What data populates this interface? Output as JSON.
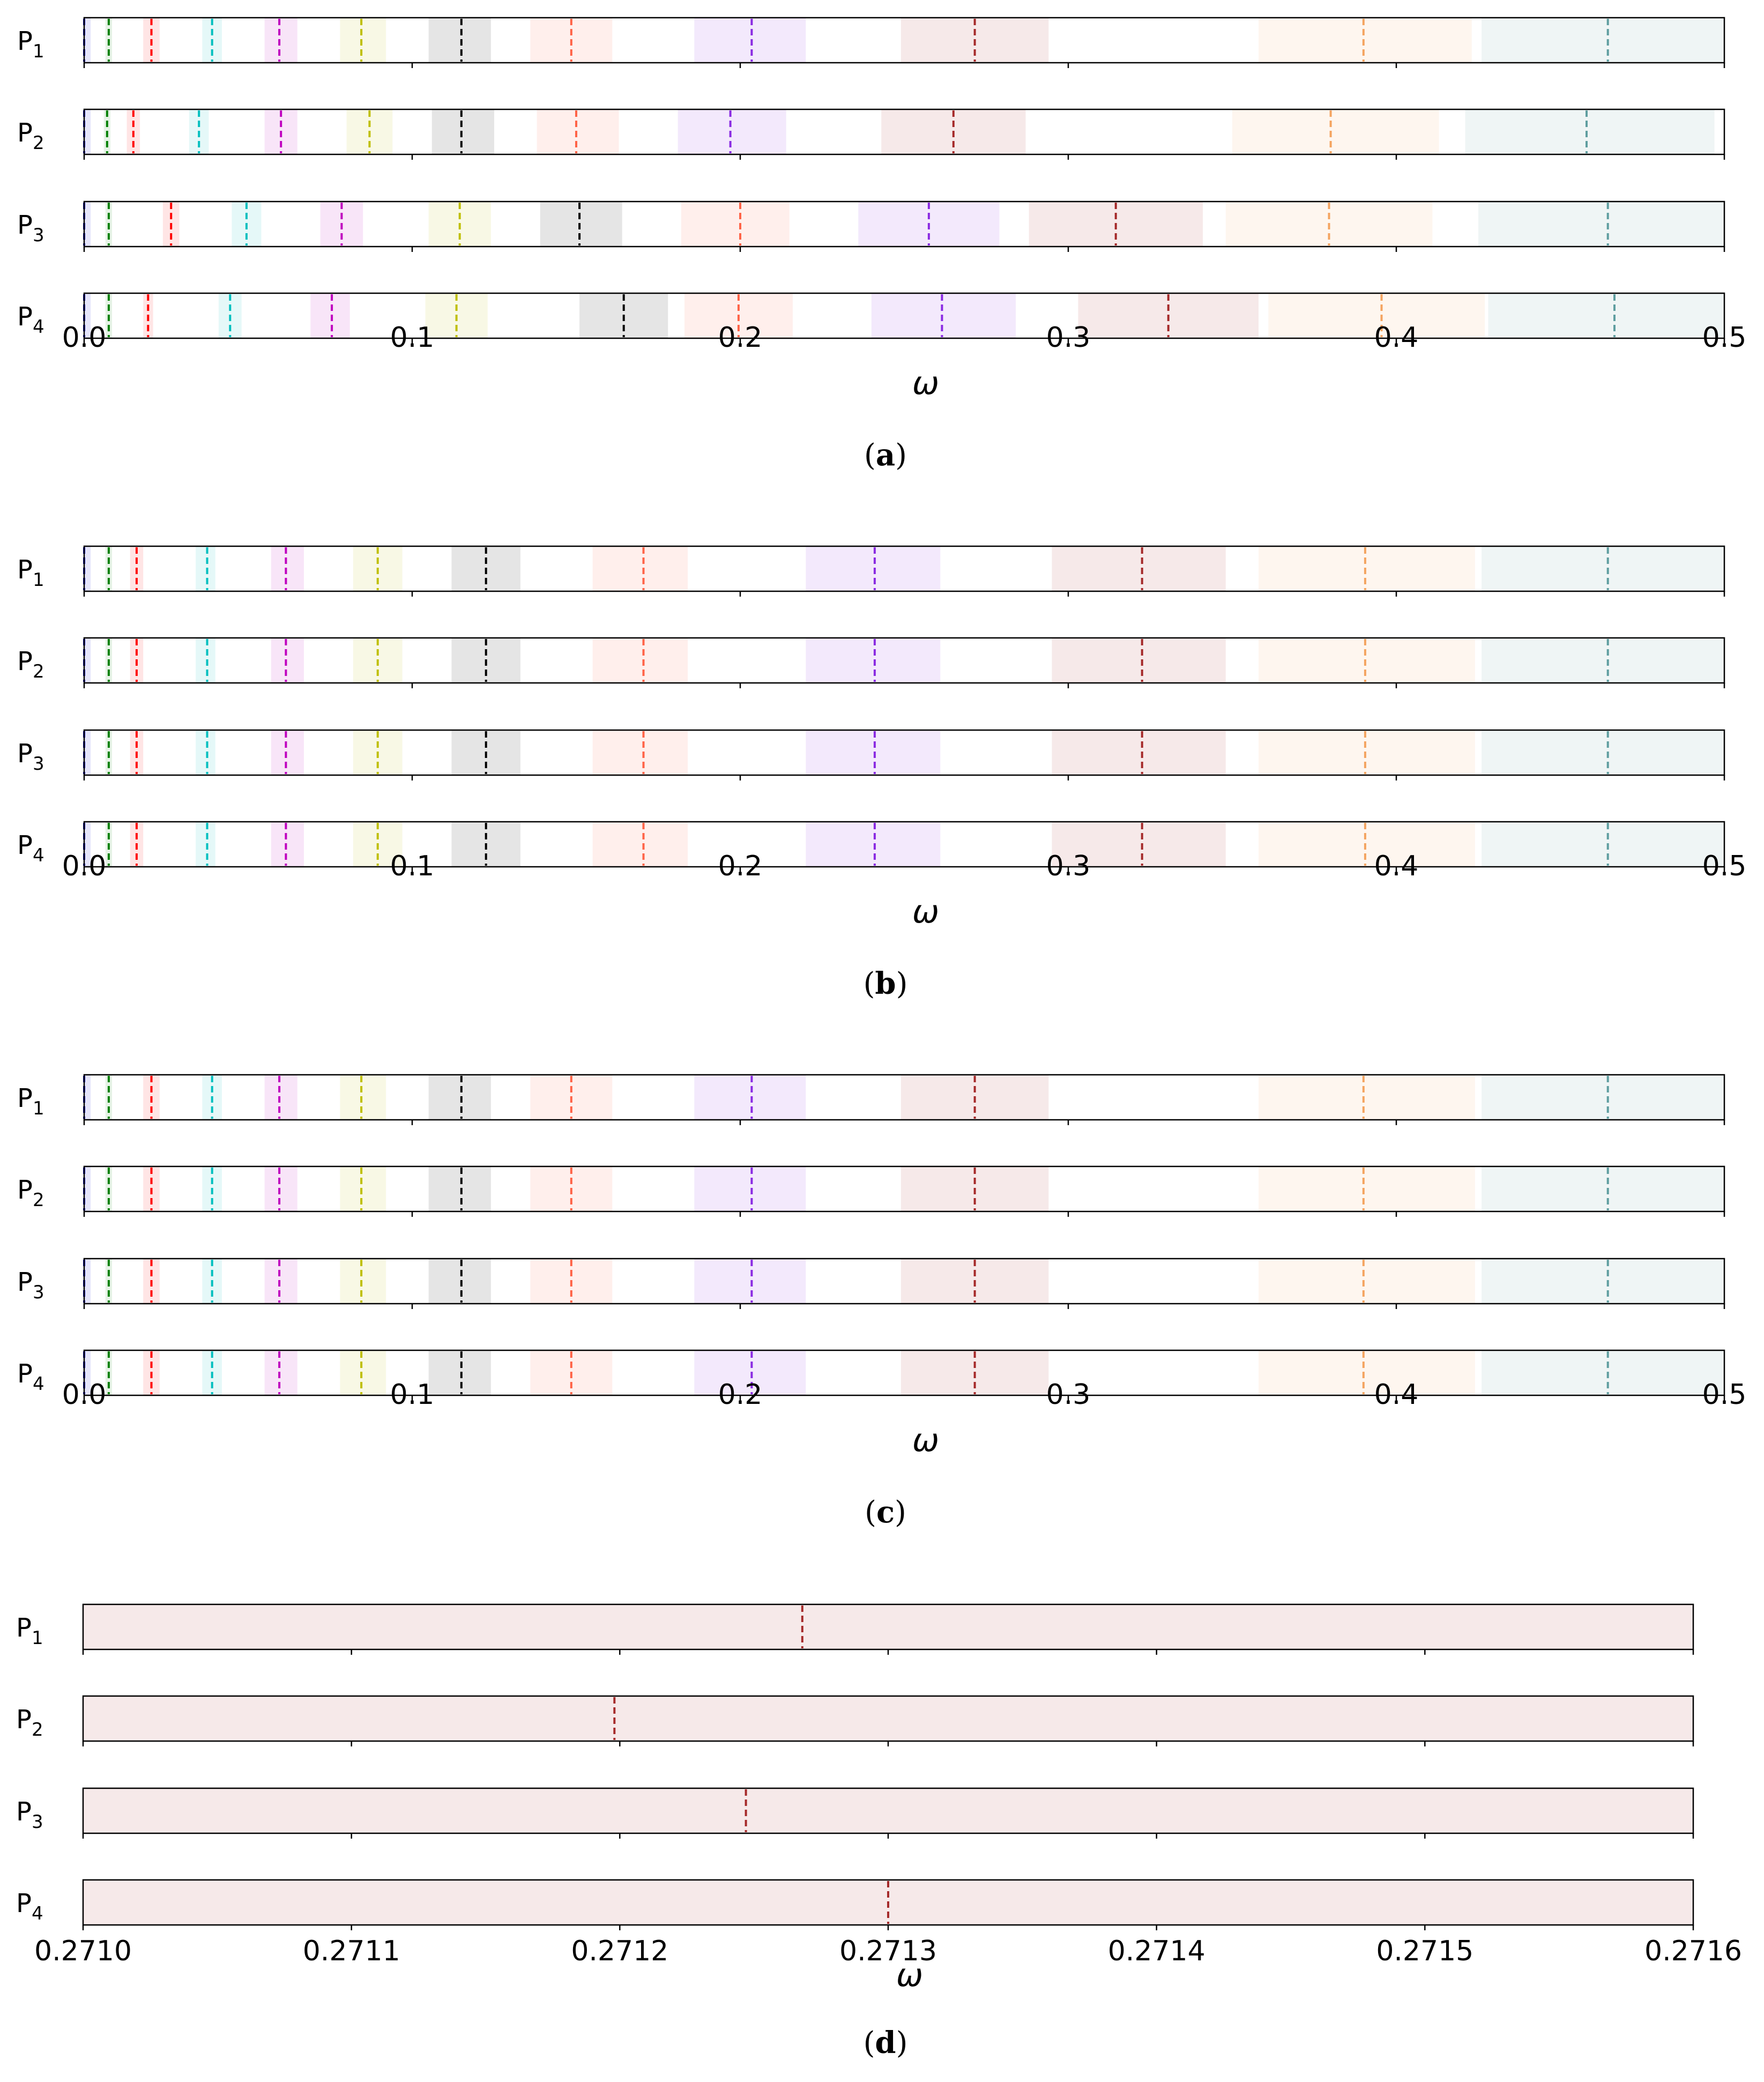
{
  "figure": {
    "captions": [
      "(a)",
      "(b)",
      "(c)",
      "(d)"
    ]
  },
  "colors": {
    "series": [
      "#0000cc",
      "#008000",
      "#ff0000",
      "#00bfbf",
      "#bf00bf",
      "#bfbf00",
      "#000000",
      "#ff6347",
      "#8a2be2",
      "#a52a2a",
      "#f4a460",
      "#5f9ea0"
    ],
    "spine": "#000000"
  },
  "chart_data": [
    {
      "type": "band",
      "caption": "(a)",
      "xlabel": "ω",
      "xlim": [
        0,
        0.5
      ],
      "xticks": [
        0,
        0.1,
        0.2,
        0.3,
        0.4,
        0.5
      ],
      "xtick_labels": [
        "0.0",
        "0.1",
        "0.2",
        "0.3",
        "0.4",
        "0.5"
      ],
      "rows": [
        {
          "label": "P",
          "sub": "1",
          "lines": [
            0.0,
            0.0075,
            0.0205,
            0.039,
            0.0595,
            0.0845,
            0.115,
            0.1485,
            0.2035,
            0.2715,
            0.39,
            0.4645
          ],
          "bands": [
            [
              0.0,
              0.002
            ],
            [
              0.0065,
              0.0085
            ],
            [
              0.018,
              0.023
            ],
            [
              0.036,
              0.042
            ],
            [
              0.055,
              0.065
            ],
            [
              0.078,
              0.092
            ],
            [
              0.105,
              0.124
            ],
            [
              0.136,
              0.161
            ],
            [
              0.186,
              0.22
            ],
            [
              0.249,
              0.294
            ],
            [
              0.358,
              0.423
            ],
            [
              0.426,
              0.5
            ]
          ]
        },
        {
          "label": "P",
          "sub": "2",
          "lines": [
            0.0,
            0.007,
            0.015,
            0.035,
            0.06,
            0.087,
            0.115,
            0.15,
            0.197,
            0.265,
            0.38,
            0.458
          ],
          "bands": [
            [
              0.0,
              0.002
            ],
            [
              0.006,
              0.008
            ],
            [
              0.013,
              0.017
            ],
            [
              0.032,
              0.038
            ],
            [
              0.055,
              0.065
            ],
            [
              0.08,
              0.094
            ],
            [
              0.106,
              0.125
            ],
            [
              0.138,
              0.163
            ],
            [
              0.181,
              0.214
            ],
            [
              0.243,
              0.287
            ],
            [
              0.35,
              0.413
            ],
            [
              0.421,
              0.497
            ]
          ]
        },
        {
          "label": "P",
          "sub": "3",
          "lines": [
            0.0,
            0.0075,
            0.0265,
            0.0495,
            0.0785,
            0.1145,
            0.151,
            0.2,
            0.2575,
            0.3145,
            0.3795,
            0.4645
          ],
          "bands": [
            [
              0.0,
              0.002
            ],
            [
              0.0065,
              0.0085
            ],
            [
              0.024,
              0.029
            ],
            [
              0.045,
              0.054
            ],
            [
              0.072,
              0.085
            ],
            [
              0.105,
              0.124
            ],
            [
              0.139,
              0.164
            ],
            [
              0.182,
              0.215
            ],
            [
              0.236,
              0.279
            ],
            [
              0.288,
              0.341
            ],
            [
              0.348,
              0.411
            ],
            [
              0.425,
              0.5
            ]
          ]
        },
        {
          "label": "P",
          "sub": "4",
          "lines": [
            0.0,
            0.0075,
            0.0195,
            0.0445,
            0.0755,
            0.1135,
            0.1645,
            0.1995,
            0.2615,
            0.3305,
            0.3955,
            0.4665
          ],
          "bands": [
            [
              0.0,
              0.002
            ],
            [
              0.0065,
              0.0085
            ],
            [
              0.018,
              0.021
            ],
            [
              0.041,
              0.048
            ],
            [
              0.069,
              0.081
            ],
            [
              0.104,
              0.123
            ],
            [
              0.151,
              0.178
            ],
            [
              0.183,
              0.216
            ],
            [
              0.24,
              0.284
            ],
            [
              0.303,
              0.358
            ],
            [
              0.361,
              0.427
            ],
            [
              0.428,
              0.5
            ]
          ]
        }
      ]
    },
    {
      "type": "band",
      "caption": "(b)",
      "xlabel": "ω",
      "xlim": [
        0,
        0.5
      ],
      "xticks": [
        0,
        0.1,
        0.2,
        0.3,
        0.4,
        0.5
      ],
      "xtick_labels": [
        "0.0",
        "0.1",
        "0.2",
        "0.3",
        "0.4",
        "0.5"
      ],
      "rows": [
        {
          "label": "P",
          "sub": "1",
          "lines": [
            0.0,
            0.0075,
            0.016,
            0.0375,
            0.0615,
            0.0895,
            0.1225,
            0.1705,
            0.241,
            0.3225,
            0.3905,
            0.4645
          ],
          "bands": [
            [
              0.0,
              0.002
            ],
            [
              0.0065,
              0.0085
            ],
            [
              0.014,
              0.018
            ],
            [
              0.034,
              0.04
            ],
            [
              0.057,
              0.067
            ],
            [
              0.082,
              0.097
            ],
            [
              0.112,
              0.133
            ],
            [
              0.155,
              0.184
            ],
            [
              0.22,
              0.261
            ],
            [
              0.295,
              0.348
            ],
            [
              0.358,
              0.424
            ],
            [
              0.426,
              0.5
            ]
          ]
        },
        {
          "label": "P",
          "sub": "2",
          "lines": [
            0.0,
            0.0075,
            0.016,
            0.0375,
            0.0615,
            0.0895,
            0.1225,
            0.1705,
            0.241,
            0.3225,
            0.3905,
            0.4645
          ],
          "bands": [
            [
              0.0,
              0.002
            ],
            [
              0.0065,
              0.0085
            ],
            [
              0.014,
              0.018
            ],
            [
              0.034,
              0.04
            ],
            [
              0.057,
              0.067
            ],
            [
              0.082,
              0.097
            ],
            [
              0.112,
              0.133
            ],
            [
              0.155,
              0.184
            ],
            [
              0.22,
              0.261
            ],
            [
              0.295,
              0.348
            ],
            [
              0.358,
              0.424
            ],
            [
              0.426,
              0.5
            ]
          ]
        },
        {
          "label": "P",
          "sub": "3",
          "lines": [
            0.0,
            0.0075,
            0.016,
            0.0375,
            0.0615,
            0.0895,
            0.1225,
            0.1705,
            0.241,
            0.3225,
            0.3905,
            0.4645
          ],
          "bands": [
            [
              0.0,
              0.002
            ],
            [
              0.0065,
              0.0085
            ],
            [
              0.014,
              0.018
            ],
            [
              0.034,
              0.04
            ],
            [
              0.057,
              0.067
            ],
            [
              0.082,
              0.097
            ],
            [
              0.112,
              0.133
            ],
            [
              0.155,
              0.184
            ],
            [
              0.22,
              0.261
            ],
            [
              0.295,
              0.348
            ],
            [
              0.358,
              0.424
            ],
            [
              0.426,
              0.5
            ]
          ]
        },
        {
          "label": "P",
          "sub": "4",
          "lines": [
            0.0,
            0.0075,
            0.016,
            0.0375,
            0.0615,
            0.0895,
            0.1225,
            0.1705,
            0.241,
            0.3225,
            0.3905,
            0.4645
          ],
          "bands": [
            [
              0.0,
              0.002
            ],
            [
              0.0065,
              0.0085
            ],
            [
              0.014,
              0.018
            ],
            [
              0.034,
              0.04
            ],
            [
              0.057,
              0.067
            ],
            [
              0.082,
              0.097
            ],
            [
              0.112,
              0.133
            ],
            [
              0.155,
              0.184
            ],
            [
              0.22,
              0.261
            ],
            [
              0.295,
              0.348
            ],
            [
              0.358,
              0.424
            ],
            [
              0.426,
              0.5
            ]
          ]
        }
      ]
    },
    {
      "type": "band",
      "caption": "(c)",
      "xlabel": "ω",
      "xlim": [
        0,
        0.5
      ],
      "xticks": [
        0,
        0.1,
        0.2,
        0.3,
        0.4,
        0.5
      ],
      "xtick_labels": [
        "0.0",
        "0.1",
        "0.2",
        "0.3",
        "0.4",
        "0.5"
      ],
      "rows": [
        {
          "label": "P",
          "sub": "1",
          "lines": [
            0.0,
            0.0075,
            0.0205,
            0.039,
            0.0595,
            0.0845,
            0.115,
            0.1485,
            0.2035,
            0.2715,
            0.39,
            0.4645
          ],
          "bands": [
            [
              0.0,
              0.002
            ],
            [
              0.0065,
              0.0085
            ],
            [
              0.018,
              0.023
            ],
            [
              0.036,
              0.042
            ],
            [
              0.055,
              0.065
            ],
            [
              0.078,
              0.092
            ],
            [
              0.105,
              0.124
            ],
            [
              0.136,
              0.161
            ],
            [
              0.186,
              0.22
            ],
            [
              0.249,
              0.294
            ],
            [
              0.358,
              0.424
            ],
            [
              0.426,
              0.5
            ]
          ]
        },
        {
          "label": "P",
          "sub": "2",
          "lines": [
            0.0,
            0.0075,
            0.0205,
            0.039,
            0.0595,
            0.0845,
            0.115,
            0.1485,
            0.2035,
            0.2715,
            0.39,
            0.4645
          ],
          "bands": [
            [
              0.0,
              0.002
            ],
            [
              0.0065,
              0.0085
            ],
            [
              0.018,
              0.023
            ],
            [
              0.036,
              0.042
            ],
            [
              0.055,
              0.065
            ],
            [
              0.078,
              0.092
            ],
            [
              0.105,
              0.124
            ],
            [
              0.136,
              0.161
            ],
            [
              0.186,
              0.22
            ],
            [
              0.249,
              0.294
            ],
            [
              0.358,
              0.424
            ],
            [
              0.426,
              0.5
            ]
          ]
        },
        {
          "label": "P",
          "sub": "3",
          "lines": [
            0.0,
            0.0075,
            0.0205,
            0.039,
            0.0595,
            0.0845,
            0.115,
            0.1485,
            0.2035,
            0.2715,
            0.39,
            0.4645
          ],
          "bands": [
            [
              0.0,
              0.002
            ],
            [
              0.0065,
              0.0085
            ],
            [
              0.018,
              0.023
            ],
            [
              0.036,
              0.042
            ],
            [
              0.055,
              0.065
            ],
            [
              0.078,
              0.092
            ],
            [
              0.105,
              0.124
            ],
            [
              0.136,
              0.161
            ],
            [
              0.186,
              0.22
            ],
            [
              0.249,
              0.294
            ],
            [
              0.358,
              0.424
            ],
            [
              0.426,
              0.5
            ]
          ]
        },
        {
          "label": "P",
          "sub": "4",
          "lines": [
            0.0,
            0.0075,
            0.0205,
            0.039,
            0.0595,
            0.0845,
            0.115,
            0.1485,
            0.2035,
            0.2715,
            0.39,
            0.4645
          ],
          "bands": [
            [
              0.0,
              0.002
            ],
            [
              0.0065,
              0.0085
            ],
            [
              0.018,
              0.023
            ],
            [
              0.036,
              0.042
            ],
            [
              0.055,
              0.065
            ],
            [
              0.078,
              0.092
            ],
            [
              0.105,
              0.124
            ],
            [
              0.136,
              0.161
            ],
            [
              0.186,
              0.22
            ],
            [
              0.249,
              0.294
            ],
            [
              0.358,
              0.424
            ],
            [
              0.426,
              0.5
            ]
          ]
        }
      ]
    },
    {
      "type": "band",
      "caption": "(d)",
      "xlabel": "ω",
      "xlim": [
        0.271,
        0.2716
      ],
      "xticks": [
        0.271,
        0.2711,
        0.2712,
        0.2713,
        0.2714,
        0.2715,
        0.2716
      ],
      "xtick_labels": [
        "0.2710",
        "0.2711",
        "0.2712",
        "0.2713",
        "0.2714",
        "0.2715",
        "0.2716"
      ],
      "line_color_index": 9,
      "rows": [
        {
          "label": "P",
          "sub": "1",
          "lines": [
            0.271268
          ],
          "bands": [
            [
              0.271,
              0.2716
            ]
          ]
        },
        {
          "label": "P",
          "sub": "2",
          "lines": [
            0.271198
          ],
          "bands": [
            [
              0.271,
              0.2716
            ]
          ]
        },
        {
          "label": "P",
          "sub": "3",
          "lines": [
            0.271247
          ],
          "bands": [
            [
              0.271,
              0.2716
            ]
          ]
        },
        {
          "label": "P",
          "sub": "4",
          "lines": [
            0.2713
          ],
          "bands": [
            [
              0.271,
              0.2716
            ]
          ]
        }
      ]
    }
  ]
}
